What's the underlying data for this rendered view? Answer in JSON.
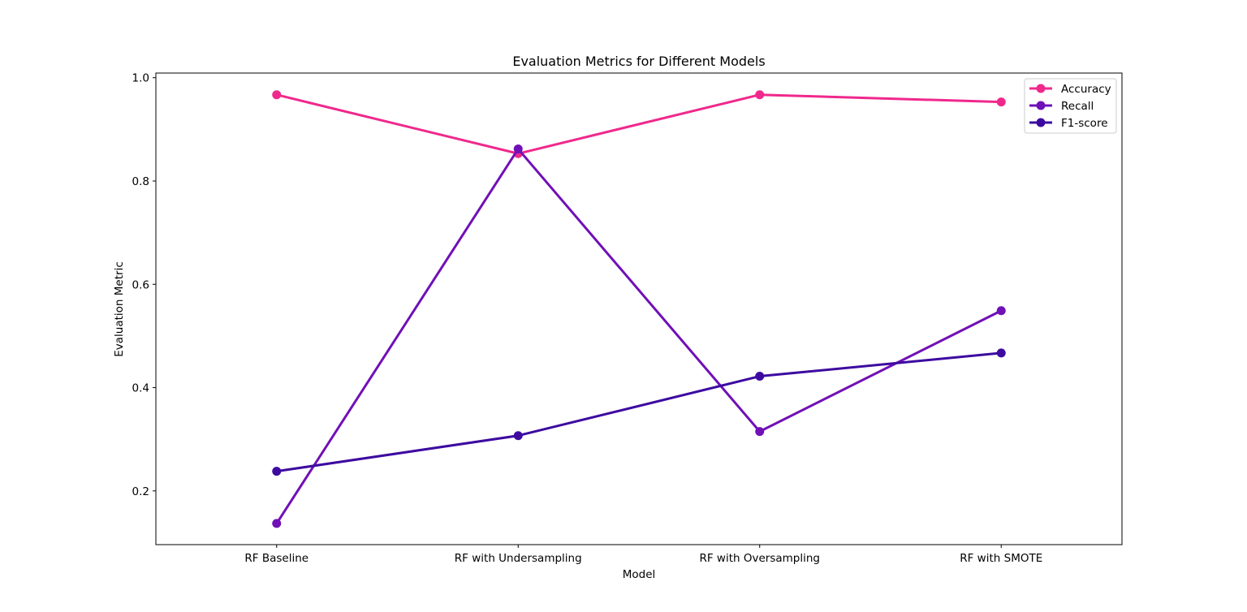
{
  "chart_data": {
    "type": "line",
    "title": "Evaluation Metrics for Different Models",
    "xlabel": "Model",
    "ylabel": "Evaluation Metric",
    "categories": [
      "RF Baseline",
      "RF with Undersampling",
      "RF with Oversampling",
      "RF with SMOTE"
    ],
    "yticks": [
      "0.2",
      "0.4",
      "0.6",
      "0.8",
      "1.0"
    ],
    "ylim": [
      0.096,
      1.009
    ],
    "grid": false,
    "legend_position": "top-right",
    "series": [
      {
        "name": "Accuracy",
        "color": "#f0288c",
        "values": [
          0.967,
          0.853,
          0.967,
          0.953
        ]
      },
      {
        "name": "Recall",
        "color": "#7010b8",
        "values": [
          0.137,
          0.862,
          0.315,
          0.549
        ]
      },
      {
        "name": "F1-score",
        "color": "#3d0aa0",
        "values": [
          0.238,
          0.307,
          0.422,
          0.467
        ]
      }
    ]
  }
}
